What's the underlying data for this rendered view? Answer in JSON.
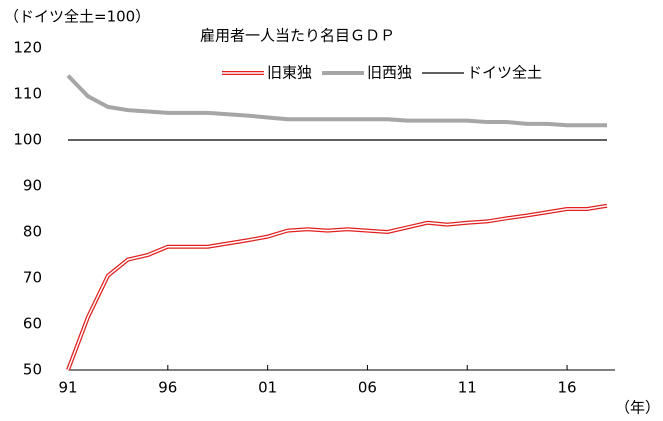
{
  "chart_data": {
    "type": "line",
    "title": "雇用者一人当たり名目ＧＤＰ",
    "y_label": "（ドイツ全土=100）",
    "x_label": "（年）",
    "categories": [
      "91",
      null,
      null,
      null,
      null,
      "96",
      null,
      null,
      null,
      null,
      "01",
      null,
      null,
      null,
      null,
      "06",
      null,
      null,
      null,
      null,
      "11",
      null,
      null,
      null,
      null,
      "16",
      null,
      null
    ],
    "series": [
      {
        "name": "旧東独",
        "color": "#e02020",
        "style": "double",
        "values": [
          50,
          61.5,
          70.5,
          74,
          75,
          76.8,
          76.8,
          76.8,
          77.5,
          78.2,
          79,
          80.3,
          80.6,
          80.3,
          80.6,
          80.3,
          80,
          81,
          82,
          81.6,
          82,
          82.3,
          83,
          83.6,
          84.3,
          85,
          85,
          85.7
        ]
      },
      {
        "name": "旧西独",
        "color": "#a6a6a6",
        "style": "thick",
        "values": [
          114,
          109.5,
          107.2,
          106.5,
          106.2,
          105.9,
          105.9,
          105.9,
          105.6,
          105.3,
          104.9,
          104.5,
          104.5,
          104.5,
          104.5,
          104.5,
          104.5,
          104.2,
          104.2,
          104.2,
          104.2,
          103.9,
          103.9,
          103.5,
          103.5,
          103.2,
          103.2,
          103.2
        ]
      },
      {
        "name": "ドイツ全土",
        "color": "#000000",
        "style": "thin",
        "values": [
          100,
          100,
          100,
          100,
          100,
          100,
          100,
          100,
          100,
          100,
          100,
          100,
          100,
          100,
          100,
          100,
          100,
          100,
          100,
          100,
          100,
          100,
          100,
          100,
          100,
          100,
          100,
          100
        ]
      }
    ],
    "ylim": [
      50,
      120
    ],
    "yticks": [
      50,
      60,
      70,
      80,
      90,
      100,
      110,
      120
    ],
    "grid": false,
    "legend": "top-right"
  }
}
